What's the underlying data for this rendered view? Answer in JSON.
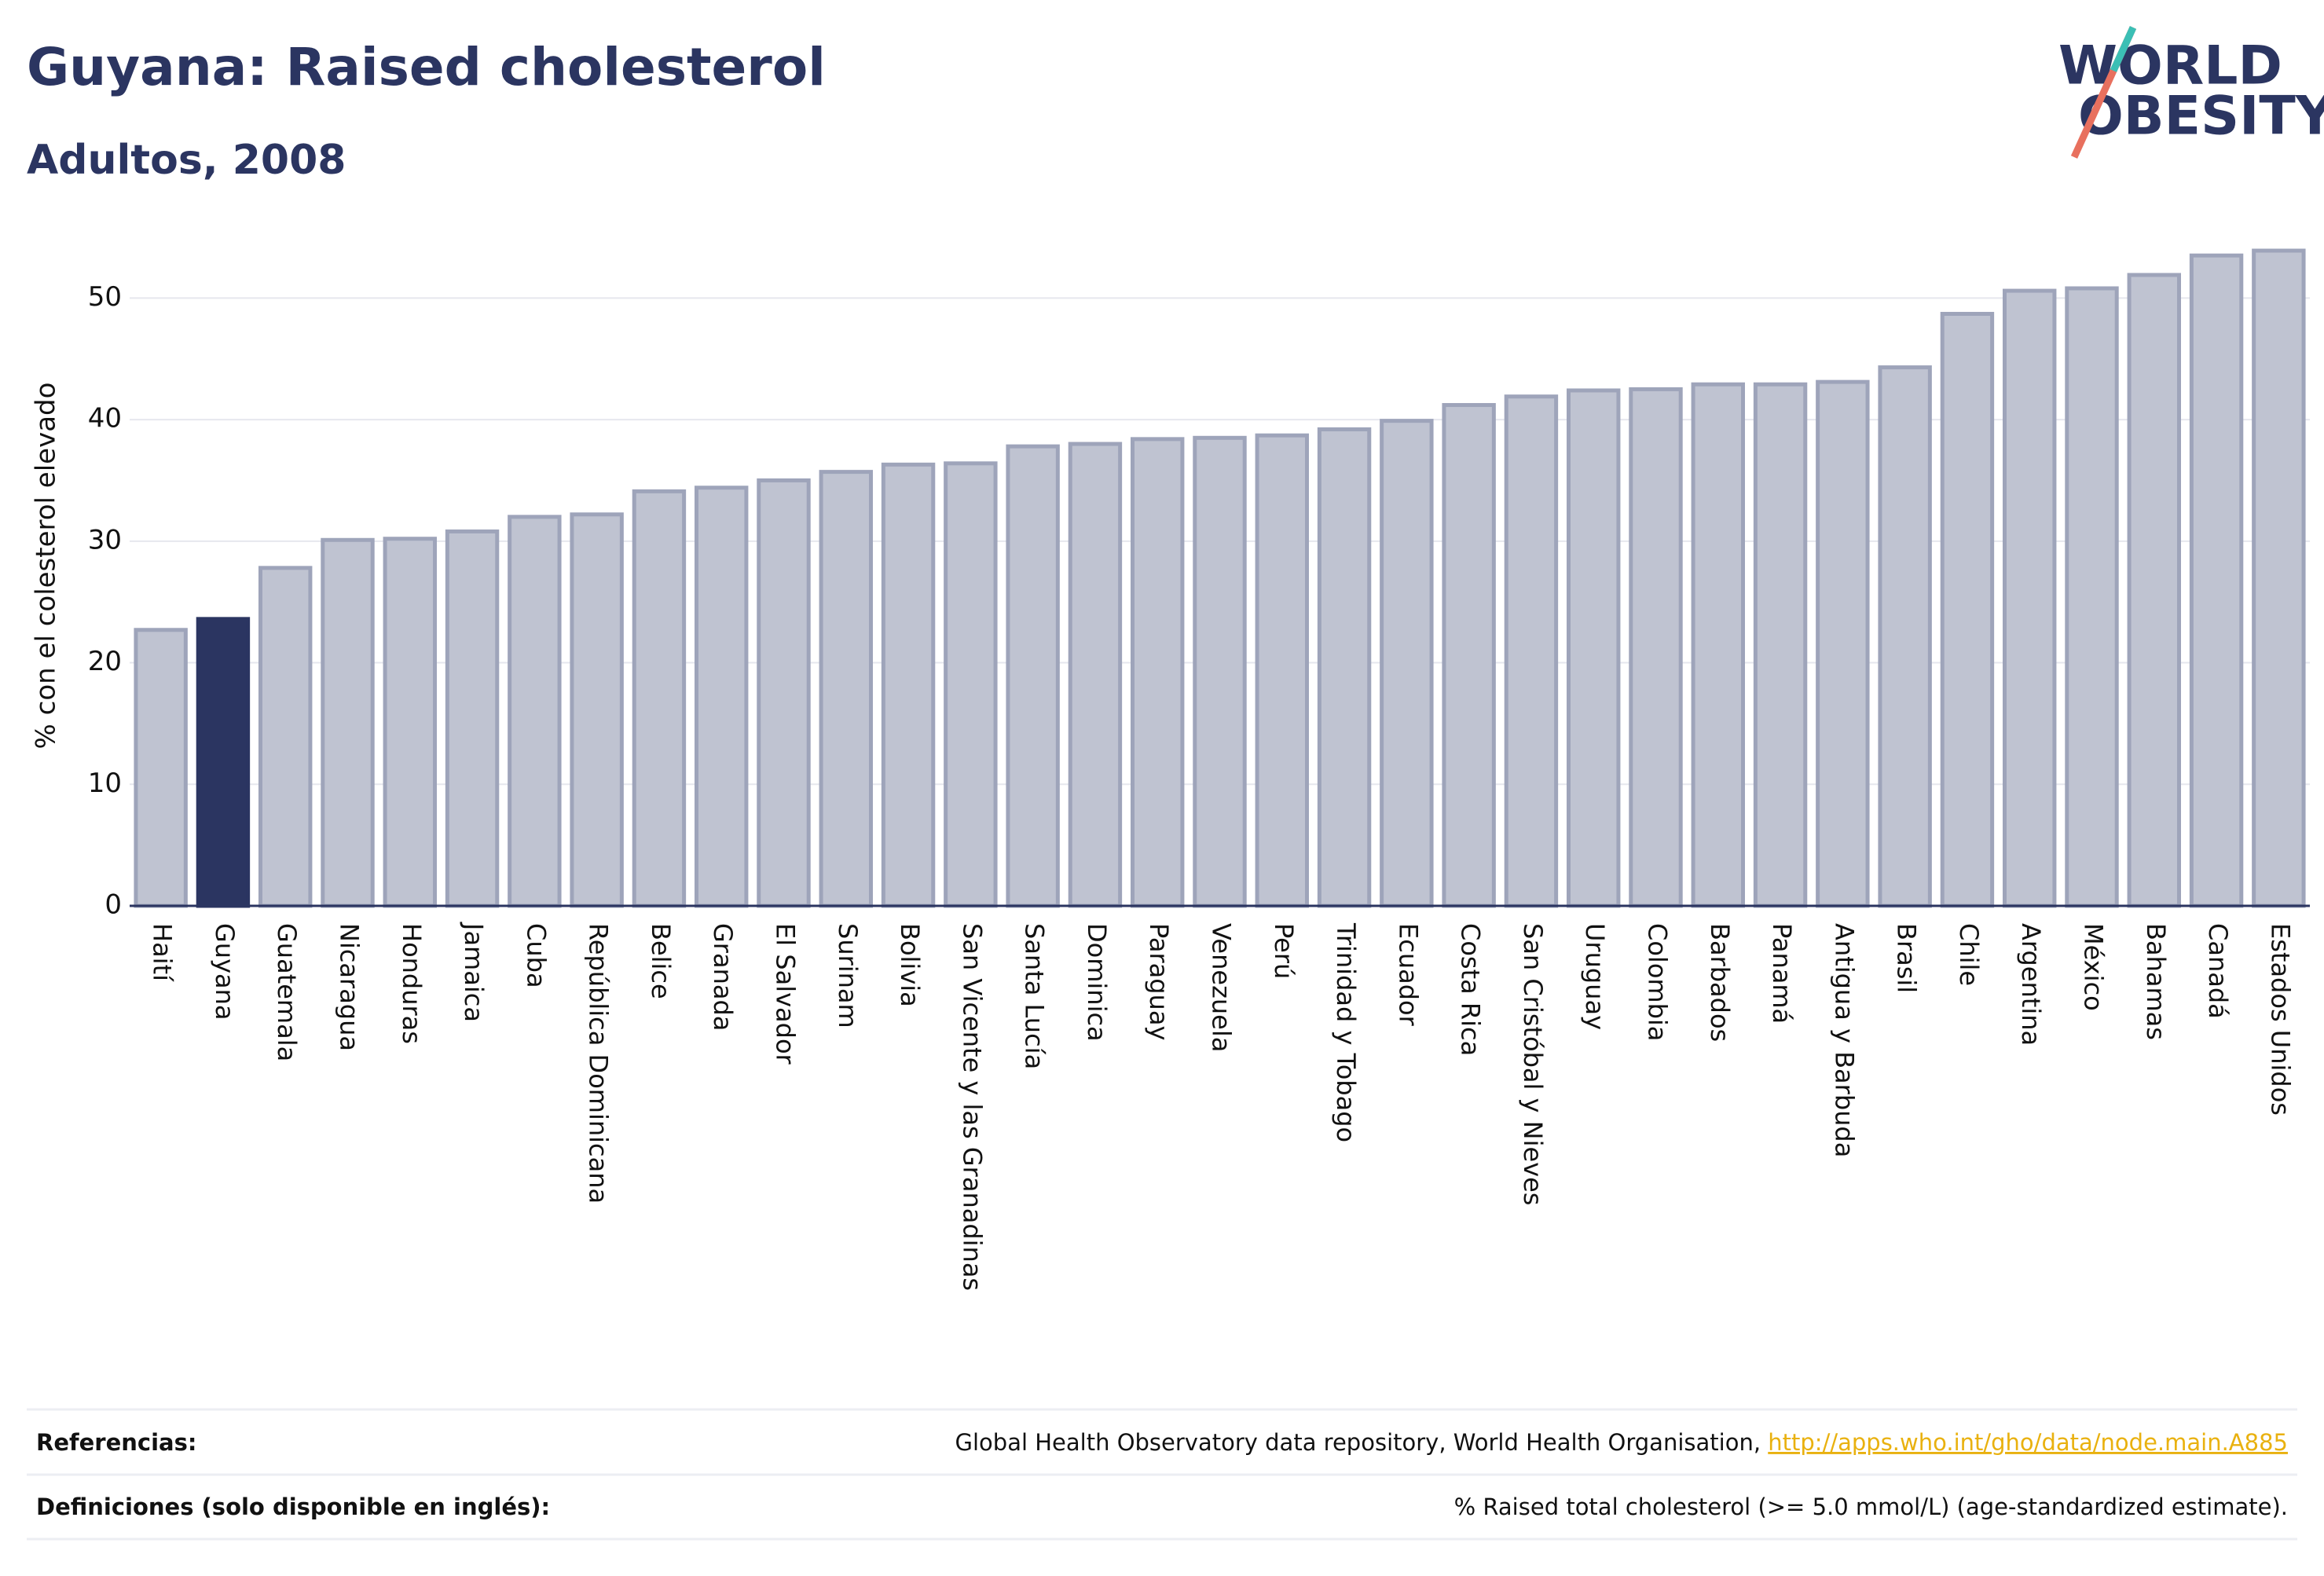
{
  "chart_data": {
    "type": "bar",
    "title": "Guyana: Raised cholesterol",
    "subtitle": "Adultos, 2008",
    "y_label": "% con el colesterol elevado",
    "categories": [
      "Haití",
      "Guyana",
      "Guatemala",
      "Nicaragua",
      "Honduras",
      "Jamaica",
      "Cuba",
      "República Dominicana",
      "Belice",
      "Granada",
      "El Salvador",
      "Surinam",
      "Bolivia",
      "San Vicente y las Granadinas",
      "Santa Lucía",
      "Dominica",
      "Paraguay",
      "Venezuela",
      "Perú",
      "Trinidad y Tobago",
      "Ecuador",
      "Costa Rica",
      "San Cristóbal y Nieves",
      "Uruguay",
      "Colombia",
      "Barbados",
      "Panamá",
      "Antigua y Barbuda",
      "Brasil",
      "Chile",
      "Argentina",
      "México",
      "Bahamas",
      "Canadá",
      "Estados Unidos"
    ],
    "values": [
      22.7,
      23.6,
      27.8,
      30.1,
      30.2,
      30.8,
      32.0,
      32.2,
      34.1,
      34.4,
      35.0,
      35.7,
      36.3,
      36.4,
      37.8,
      38.0,
      38.4,
      38.5,
      38.7,
      39.2,
      39.9,
      41.2,
      41.9,
      42.4,
      42.5,
      42.9,
      42.9,
      43.1,
      44.3,
      48.7,
      50.6,
      50.8,
      51.9,
      53.5,
      53.9
    ],
    "colors": [
      "#bfc3d1",
      "#2b3561",
      "#bfc3d1",
      "#bfc3d1",
      "#bfc3d1",
      "#bfc3d1",
      "#bfc3d1",
      "#bfc3d1",
      "#bfc3d1",
      "#bfc3d1",
      "#bfc3d1",
      "#bfc3d1",
      "#bfc3d1",
      "#bfc3d1",
      "#bfc3d1",
      "#bfc3d1",
      "#bfc3d1",
      "#bfc3d1",
      "#bfc3d1",
      "#bfc3d1",
      "#bfc3d1",
      "#bfc3d1",
      "#bfc3d1",
      "#bfc3d1",
      "#bfc3d1",
      "#bfc3d1",
      "#bfc3d1",
      "#bfc3d1",
      "#bfc3d1",
      "#bfc3d1",
      "#bfc3d1",
      "#bfc3d1",
      "#bfc3d1",
      "#bfc3d1",
      "#bfc3d1"
    ],
    "ylim": [
      0,
      55
    ],
    "yticks": [
      0,
      10,
      20,
      30,
      40,
      50
    ],
    "grid": true
  },
  "logo": {
    "line1": "WORLD",
    "line2": "OBESITY"
  },
  "footer": {
    "references_label": "Referencias:",
    "references_text": "Global Health Observatory data repository, World Health Organisation, ",
    "references_link": "http://apps.who.int/gho/data/node.main.A885",
    "definitions_label": "Definiciones (solo disponible en inglés):",
    "definitions_text": "% Raised total cholesterol (>= 5.0 mmol/L) (age-standardized estimate)."
  }
}
